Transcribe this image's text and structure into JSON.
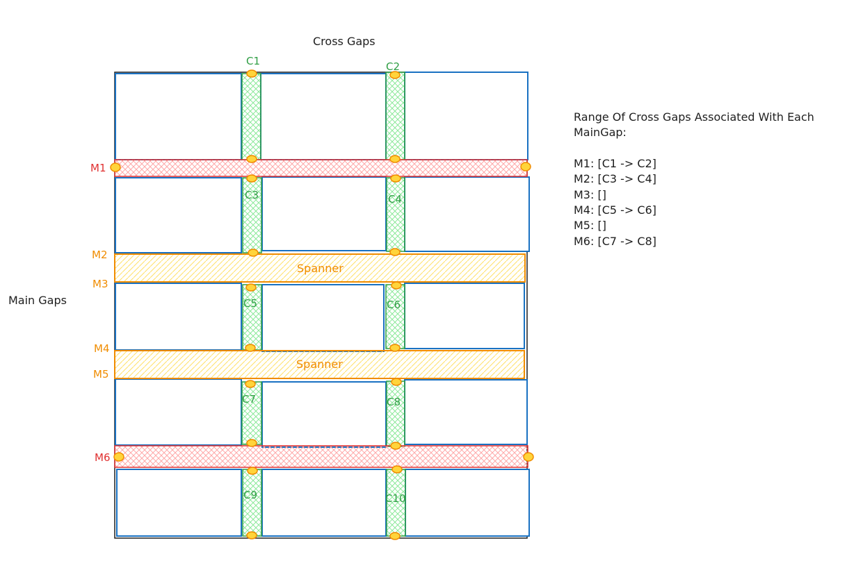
{
  "diagram": {
    "colors": {
      "cell_stroke": "#1971c2",
      "outer_stroke": "#1e1e1e",
      "main_gap_red": "#e03131",
      "main_gap_red_fill": "#ffc9c9",
      "spanner_orange": "#f08c00",
      "spanner_fill": "#ffec99",
      "cross_gap_green": "#2f9e44",
      "cross_gap_fill": "#b2f2bb",
      "marker_fill": "#ffd43b",
      "marker_stroke": "#f08c00"
    },
    "titles": {
      "cross_gaps": "Cross Gaps",
      "main_gaps": "Main Gaps"
    },
    "main_gap_labels": [
      "M1",
      "M2",
      "M3",
      "M4",
      "M5",
      "M6"
    ],
    "cross_gap_labels": [
      "C1",
      "C2",
      "C3",
      "C4",
      "C5",
      "C6",
      "C7",
      "C8",
      "C9",
      "C10"
    ],
    "spanners": [
      "Spanner",
      "Spanner"
    ],
    "range": {
      "heading_line1": "Range Of Cross Gaps Associated With Each",
      "heading_line2": "MainGap:",
      "lines": [
        "M1: [C1 -> C2]",
        "M2: [C3 -> C4]",
        "M3: []",
        "M4: [C5 -> C6]",
        "M5: []",
        "M6: [C7 -> C8]"
      ]
    }
  }
}
